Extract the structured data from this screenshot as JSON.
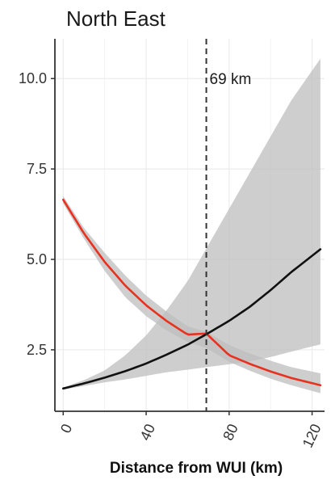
{
  "chart_data": {
    "type": "line",
    "title": "North East",
    "xlabel": "Distance from WUI (km)",
    "ylabel": "",
    "xlim": [
      -4,
      126
    ],
    "ylim": [
      0.8,
      11.1
    ],
    "x_ticks": [
      0,
      40,
      80,
      120
    ],
    "y_ticks": [
      2.5,
      5.0,
      7.5,
      10.0
    ],
    "x_tick_labels": [
      "0",
      "40",
      "80",
      "120"
    ],
    "y_tick_labels": [
      "2.5",
      "5.0",
      "7.5",
      "10.0"
    ],
    "grid": true,
    "legend": "none",
    "series": [
      {
        "color": "#e8311e",
        "x": [
          0,
          10,
          20,
          30,
          40,
          50,
          60,
          69,
          80,
          90,
          100,
          110,
          124
        ],
        "y": [
          6.65,
          5.72,
          4.93,
          4.27,
          3.73,
          3.29,
          2.92,
          2.95,
          2.35,
          2.11,
          1.9,
          1.72,
          1.52
        ],
        "ci_lower": [
          6.55,
          5.57,
          4.68,
          3.95,
          3.43,
          3.03,
          2.72,
          2.55,
          2.17,
          1.92,
          1.7,
          1.52,
          1.3
        ],
        "ci_upper": [
          6.75,
          5.87,
          5.18,
          4.55,
          4.0,
          3.55,
          3.15,
          3.0,
          2.63,
          2.4,
          2.2,
          2.02,
          1.85
        ]
      },
      {
        "color": "#111111",
        "x": [
          0,
          10,
          20,
          30,
          40,
          50,
          60,
          69,
          80,
          90,
          100,
          110,
          124
        ],
        "y": [
          1.43,
          1.57,
          1.73,
          1.91,
          2.12,
          2.37,
          2.64,
          2.93,
          3.3,
          3.69,
          4.15,
          4.65,
          5.28
        ],
        "ci_lower": [
          1.4,
          1.5,
          1.6,
          1.68,
          1.78,
          1.88,
          1.95,
          2.02,
          2.1,
          2.18,
          2.3,
          2.45,
          2.65
        ],
        "ci_upper": [
          1.46,
          1.66,
          1.93,
          2.35,
          2.9,
          3.6,
          4.4,
          5.3,
          6.4,
          7.4,
          8.4,
          9.4,
          10.55
        ]
      }
    ],
    "reference_lines": [
      {
        "axis": "x",
        "value": 69,
        "style": "dashed",
        "label": "69 km"
      }
    ],
    "colors": {
      "band": "#bdbdbd",
      "grid": "#ebebeb",
      "axis": "#333333"
    }
  }
}
